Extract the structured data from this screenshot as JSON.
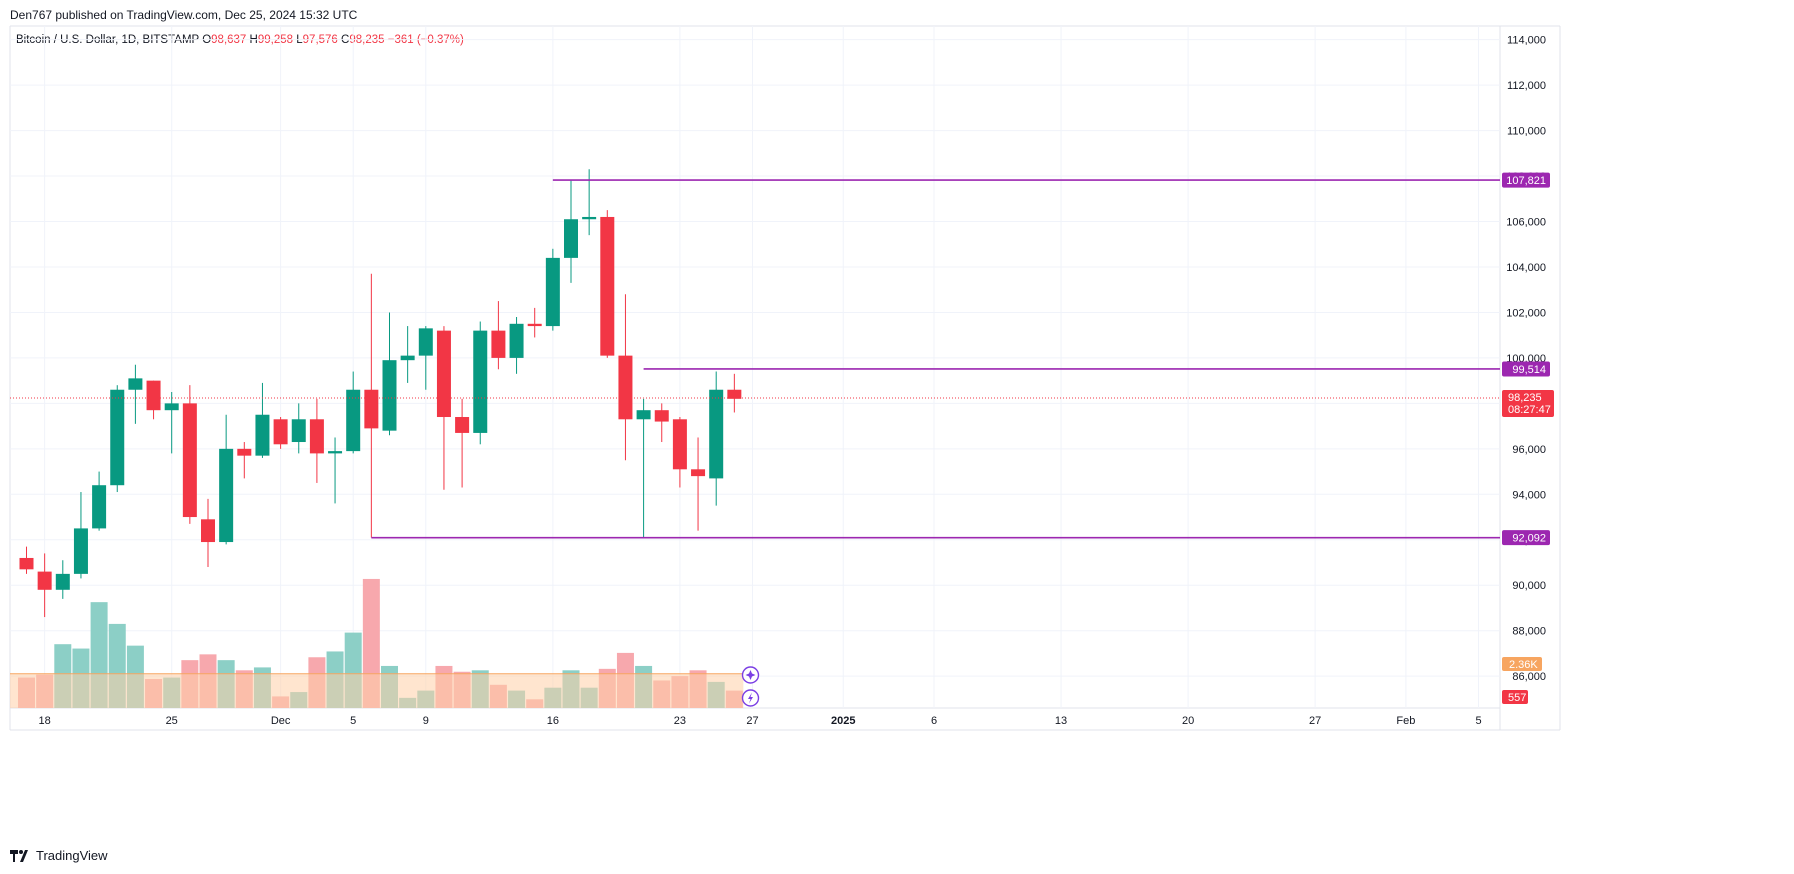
{
  "header": {
    "published": "Den767 published on TradingView.com, Dec 25, 2024 15:32 UTC"
  },
  "legend": {
    "symbol": "Bitcoin / U.S. Dollar, 1D, BITSTAMP",
    "o_label": "O",
    "o_value": "98,637",
    "h_label": "H",
    "h_value": "99,258",
    "l_label": "L",
    "l_value": "97,576",
    "c_label": "C",
    "c_value": "98,235",
    "change": "−361 (−0.37%)"
  },
  "footer": {
    "brand": "TradingView"
  },
  "colors": {
    "up": "#089981",
    "down": "#f23645",
    "level": "#9c27b0",
    "vol_up": "#8ccfc6",
    "vol_down": "#f7a8ad",
    "vol_ma": "#ffcfa8",
    "vol_ma_tag": "#f7a560"
  },
  "chart_data": {
    "type": "candlestick",
    "title": "Bitcoin / U.S. Dollar, 1D, BITSTAMP",
    "y_ticks": [
      86000,
      88000,
      90000,
      92000,
      94000,
      96000,
      98000,
      100000,
      102000,
      104000,
      106000,
      108000,
      110000,
      112000,
      114000
    ],
    "y_tick_labels": [
      "86,000",
      "88,000",
      "90,000",
      "92,000",
      "94,000",
      "96,000",
      "98,000",
      "100,000",
      "102,000",
      "104,000",
      "106,000",
      "108,000",
      "110,000",
      "112,000",
      "114,000"
    ],
    "ylim": [
      84600,
      114600
    ],
    "x_labels": [
      {
        "label": "18",
        "day": 1
      },
      {
        "label": "25",
        "day": 8
      },
      {
        "label": "Dec",
        "day": 14
      },
      {
        "label": "5",
        "day": 18
      },
      {
        "label": "9",
        "day": 22
      },
      {
        "label": "16",
        "day": 29
      },
      {
        "label": "23",
        "day": 36
      },
      {
        "label": "27",
        "day": 40
      },
      {
        "label": "2025",
        "day": 45,
        "bold": true
      },
      {
        "label": "6",
        "day": 50
      },
      {
        "label": "13",
        "day": 57
      },
      {
        "label": "20",
        "day": 64
      },
      {
        "label": "27",
        "day": 71
      },
      {
        "label": "Feb",
        "day": 76
      },
      {
        "label": "5",
        "day": 80
      }
    ],
    "candles": [
      {
        "o": 91200,
        "h": 91700,
        "l": 90500,
        "c": 90700,
        "v": 2.1
      },
      {
        "o": 90600,
        "h": 91400,
        "l": 88600,
        "c": 89800,
        "v": 2.3
      },
      {
        "o": 89800,
        "h": 91100,
        "l": 89400,
        "c": 90500,
        "v": 4.4
      },
      {
        "o": 90500,
        "h": 94100,
        "l": 90300,
        "c": 92500,
        "v": 4.1
      },
      {
        "o": 92500,
        "h": 95000,
        "l": 92400,
        "c": 94400,
        "v": 7.3
      },
      {
        "o": 94400,
        "h": 98800,
        "l": 94100,
        "c": 98600,
        "v": 5.8
      },
      {
        "o": 98600,
        "h": 99700,
        "l": 97100,
        "c": 99100,
        "v": 4.3
      },
      {
        "o": 99000,
        "h": 99000,
        "l": 97300,
        "c": 97700,
        "v": 2.0
      },
      {
        "o": 97700,
        "h": 98500,
        "l": 95800,
        "c": 98000,
        "v": 2.1
      },
      {
        "o": 98000,
        "h": 98800,
        "l": 92700,
        "c": 93000,
        "v": 3.3
      },
      {
        "o": 92900,
        "h": 93800,
        "l": 90800,
        "c": 91900,
        "v": 3.7
      },
      {
        "o": 91900,
        "h": 97500,
        "l": 91800,
        "c": 96000,
        "v": 3.3
      },
      {
        "o": 96000,
        "h": 96300,
        "l": 94700,
        "c": 95700,
        "v": 2.6
      },
      {
        "o": 95700,
        "h": 98900,
        "l": 95600,
        "c": 97500,
        "v": 2.8
      },
      {
        "o": 97300,
        "h": 97400,
        "l": 96000,
        "c": 96200,
        "v": 0.8
      },
      {
        "o": 96300,
        "h": 98000,
        "l": 95800,
        "c": 97300,
        "v": 1.1
      },
      {
        "o": 97300,
        "h": 98200,
        "l": 94500,
        "c": 95800,
        "v": 3.5
      },
      {
        "o": 95800,
        "h": 96500,
        "l": 93600,
        "c": 95900,
        "v": 3.9
      },
      {
        "o": 95900,
        "h": 99400,
        "l": 95800,
        "c": 98600,
        "v": 5.2
      },
      {
        "o": 98600,
        "h": 103700,
        "l": 92100,
        "c": 96900,
        "v": 8.9
      },
      {
        "o": 96800,
        "h": 102000,
        "l": 96600,
        "c": 99900,
        "v": 2.9
      },
      {
        "o": 99900,
        "h": 101400,
        "l": 98900,
        "c": 100100,
        "v": 0.7
      },
      {
        "o": 100100,
        "h": 101400,
        "l": 98600,
        "c": 101300,
        "v": 1.2
      },
      {
        "o": 101200,
        "h": 101400,
        "l": 94200,
        "c": 97400,
        "v": 2.9
      },
      {
        "o": 97400,
        "h": 98200,
        "l": 94300,
        "c": 96700,
        "v": 2.5
      },
      {
        "o": 96700,
        "h": 101600,
        "l": 96200,
        "c": 101200,
        "v": 2.6
      },
      {
        "o": 101200,
        "h": 102500,
        "l": 99500,
        "c": 100000,
        "v": 1.6
      },
      {
        "o": 100000,
        "h": 101800,
        "l": 99300,
        "c": 101500,
        "v": 1.2
      },
      {
        "o": 101500,
        "h": 102200,
        "l": 100900,
        "c": 101400,
        "v": 0.6
      },
      {
        "o": 101400,
        "h": 104800,
        "l": 101200,
        "c": 104400,
        "v": 1.4
      },
      {
        "o": 104400,
        "h": 107800,
        "l": 103300,
        "c": 106100,
        "v": 2.6
      },
      {
        "o": 106100,
        "h": 108300,
        "l": 105400,
        "c": 106200,
        "v": 1.4
      },
      {
        "o": 106200,
        "h": 106500,
        "l": 100000,
        "c": 100100,
        "v": 2.7
      },
      {
        "o": 100100,
        "h": 102800,
        "l": 95500,
        "c": 97300,
        "v": 3.8
      },
      {
        "o": 97300,
        "h": 98200,
        "l": 92100,
        "c": 97700,
        "v": 2.9
      },
      {
        "o": 97700,
        "h": 98000,
        "l": 96300,
        "c": 97200,
        "v": 1.9
      },
      {
        "o": 97300,
        "h": 97400,
        "l": 94300,
        "c": 95100,
        "v": 2.2
      },
      {
        "o": 95100,
        "h": 96500,
        "l": 92400,
        "c": 94800,
        "v": 2.6
      },
      {
        "o": 94700,
        "h": 99400,
        "l": 93500,
        "c": 98600,
        "v": 1.8
      },
      {
        "o": 98600,
        "h": 99300,
        "l": 97600,
        "c": 98200,
        "v": 1.2
      }
    ],
    "volume_ma": 2.36,
    "levels": [
      {
        "value": 107821,
        "label": "107,821",
        "from_day": 29
      },
      {
        "value": 99514,
        "label": "99,514",
        "from_day": 34
      },
      {
        "value": 92092,
        "label": "92,092",
        "from_day": 19
      }
    ],
    "last_price": {
      "value": 98235,
      "label": "98,235",
      "countdown": "08:27:47"
    },
    "volume_tags": {
      "ma_label": "2.36K",
      "vol_label": "557"
    }
  }
}
